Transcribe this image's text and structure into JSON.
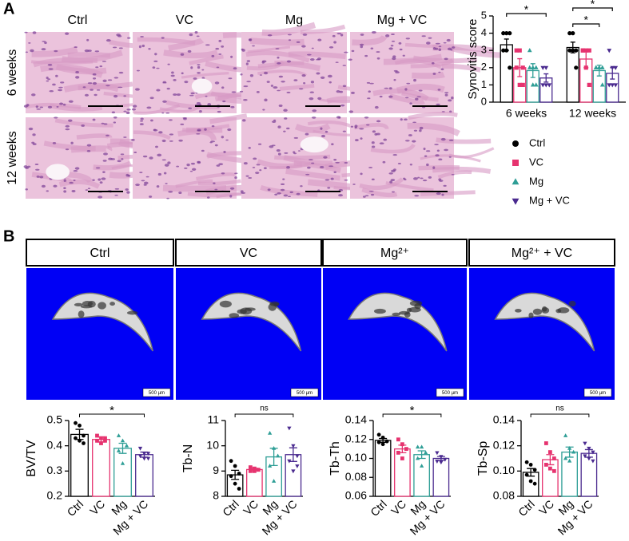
{
  "panel_a": {
    "label": "A",
    "columns": [
      "Ctrl",
      "VC",
      "Mg",
      "Mg + VC"
    ],
    "rows": [
      "6 weeks",
      "12 weeks"
    ]
  },
  "panel_b": {
    "label": "B",
    "columns": [
      "Ctrl",
      "VC",
      "Mg²⁺",
      "Mg²⁺ + VC"
    ],
    "scale_bar": "500 µm"
  },
  "chart_data": [
    {
      "type": "grouped-bar",
      "ylabel": "Synovitis score",
      "categories": [
        "6 weeks",
        "12 weeks"
      ],
      "ylim": [
        0,
        5
      ],
      "yticks": [
        0,
        1,
        2,
        3,
        4,
        5
      ],
      "legend": "below",
      "series": [
        {
          "name": "Ctrl",
          "color": "#000000",
          "marker": "circle",
          "values": [
            3.33,
            3.17
          ],
          "errors": [
            0.33,
            0.31
          ],
          "points": [
            [
              4,
              4,
              4,
              3,
              3,
              2
            ],
            [
              4,
              4,
              3,
              3,
              3,
              2
            ]
          ]
        },
        {
          "name": "VC",
          "color": "#e6336f",
          "marker": "square",
          "values": [
            2.0,
            2.5
          ],
          "errors": [
            0.52,
            0.5
          ],
          "points": [
            [
              3,
              3,
              2,
              2,
              1,
              1
            ],
            [
              3,
              3,
              3,
              3,
              2,
              1
            ]
          ]
        },
        {
          "name": "Mg",
          "color": "#2e9e96",
          "marker": "triangle",
          "values": [
            1.83,
            1.83
          ],
          "errors": [
            0.4,
            0.31
          ],
          "points": [
            [
              3,
              2,
              2,
              2,
              1,
              1
            ],
            [
              2,
              2,
              2,
              2,
              2,
              1
            ]
          ]
        },
        {
          "name": "Mg + VC",
          "color": "#4a2a8f",
          "marker": "triangle-down",
          "values": [
            1.4,
            1.67
          ],
          "errors": [
            0.24,
            0.33
          ],
          "points": [
            [
              2,
              2,
              1,
              1,
              1
            ],
            [
              3,
              2,
              2,
              1,
              1,
              1
            ]
          ]
        }
      ],
      "annotations": [
        {
          "text": "*",
          "category": "6 weeks",
          "from": "Ctrl",
          "to": "Mg + VC"
        },
        {
          "text": "*",
          "category": "12 weeks",
          "from": "Ctrl",
          "to": "Mg"
        },
        {
          "text": "*",
          "category": "12 weeks",
          "from": "Ctrl",
          "to": "Mg + VC"
        }
      ]
    },
    {
      "type": "bar",
      "ylabel": "BV/TV",
      "categories": [
        "Ctrl",
        "VC",
        "Mg",
        "Mg + VC"
      ],
      "colors": [
        "#000000",
        "#e6336f",
        "#2e9e96",
        "#4a2a8f"
      ],
      "markers": [
        "circle",
        "square",
        "triangle",
        "triangle-down"
      ],
      "ylim": [
        0.2,
        0.5
      ],
      "yticks": [
        0.2,
        0.3,
        0.4,
        0.5
      ],
      "values": [
        0.445,
        0.425,
        0.39,
        0.365
      ],
      "errors": [
        0.02,
        0.01,
        0.02,
        0.01
      ],
      "points": [
        [
          0.49,
          0.48,
          0.44,
          0.43,
          0.42,
          0.41
        ],
        [
          0.44,
          0.43,
          0.42,
          0.42,
          0.41,
          0.43
        ],
        [
          0.44,
          0.42,
          0.4,
          0.38,
          0.33
        ],
        [
          0.39,
          0.37,
          0.37,
          0.36,
          0.35,
          0.35
        ]
      ],
      "annotations": [
        {
          "text": "*",
          "from": "Ctrl",
          "to": "Mg + VC"
        }
      ]
    },
    {
      "type": "bar",
      "ylabel": "Tb-N",
      "categories": [
        "Ctrl",
        "VC",
        "Mg",
        "Mg + VC"
      ],
      "colors": [
        "#000000",
        "#e6336f",
        "#2e9e96",
        "#4a2a8f"
      ],
      "markers": [
        "circle",
        "square",
        "triangle",
        "triangle-down"
      ],
      "ylim": [
        8,
        11
      ],
      "yticks": [
        8,
        9,
        10,
        11
      ],
      "values": [
        8.85,
        9.06,
        9.56,
        9.65
      ],
      "errors": [
        0.18,
        0.05,
        0.34,
        0.27
      ],
      "points": [
        [
          9.4,
          9.2,
          8.9,
          8.8,
          8.5,
          8.3
        ],
        [
          9.15,
          9.1,
          9.05,
          9.0,
          9.0
        ],
        [
          10.5,
          9.9,
          9.6,
          9.2,
          8.6
        ],
        [
          10.7,
          10.0,
          9.6,
          9.4,
          9.0,
          9.2
        ]
      ],
      "annotations": [
        {
          "text": "ns",
          "from": "Ctrl",
          "to": "Mg + VC"
        }
      ]
    },
    {
      "type": "bar",
      "ylabel": "Tb-Th",
      "categories": [
        "Ctrl",
        "VC",
        "Mg",
        "Mg + VC"
      ],
      "colors": [
        "#000000",
        "#e6336f",
        "#2e9e96",
        "#4a2a8f"
      ],
      "markers": [
        "circle",
        "square",
        "triangle",
        "triangle-down"
      ],
      "ylim": [
        0.06,
        0.14
      ],
      "yticks": [
        0.06,
        0.08,
        {
          "value": 0.1,
          "label": "0.10"
        },
        0.12,
        0.14
      ],
      "values": [
        0.119,
        0.11,
        0.104,
        0.1
      ],
      "errors": [
        0.002,
        0.004,
        0.004,
        0.002
      ],
      "points": [
        [
          0.125,
          0.122,
          0.118,
          0.117,
          0.115
        ],
        [
          0.12,
          0.115,
          0.11,
          0.106,
          0.1
        ],
        [
          0.112,
          0.112,
          0.106,
          0.1,
          0.092
        ],
        [
          0.106,
          0.102,
          0.099,
          0.097,
          0.096
        ]
      ],
      "annotations": [
        {
          "text": "*",
          "from": "Ctrl",
          "to": "Mg + VC"
        }
      ]
    },
    {
      "type": "bar",
      "ylabel": "Tb-Sp",
      "categories": [
        "Ctrl",
        "VC",
        "Mg",
        "Mg + VC"
      ],
      "colors": [
        "#000000",
        "#e6336f",
        "#2e9e96",
        "#4a2a8f"
      ],
      "markers": [
        "circle",
        "square",
        "triangle",
        "triangle-down"
      ],
      "ylim": [
        0.08,
        0.14
      ],
      "yticks": [
        0.08,
        {
          "value": 0.1,
          "label": "0.10"
        },
        0.12,
        0.14
      ],
      "values": [
        0.099,
        0.109,
        0.115,
        0.114
      ],
      "errors": [
        0.003,
        0.004,
        0.004,
        0.003
      ],
      "points": [
        [
          0.107,
          0.105,
          0.101,
          0.097,
          0.092,
          0.09
        ],
        [
          0.122,
          0.115,
          0.11,
          0.105,
          0.102,
          0.1
        ],
        [
          0.128,
          0.118,
          0.115,
          0.11,
          0.108
        ],
        [
          0.122,
          0.118,
          0.115,
          0.112,
          0.11,
          0.108
        ]
      ],
      "annotations": [
        {
          "text": "ns",
          "from": "Ctrl",
          "to": "Mg + VC"
        }
      ]
    }
  ]
}
